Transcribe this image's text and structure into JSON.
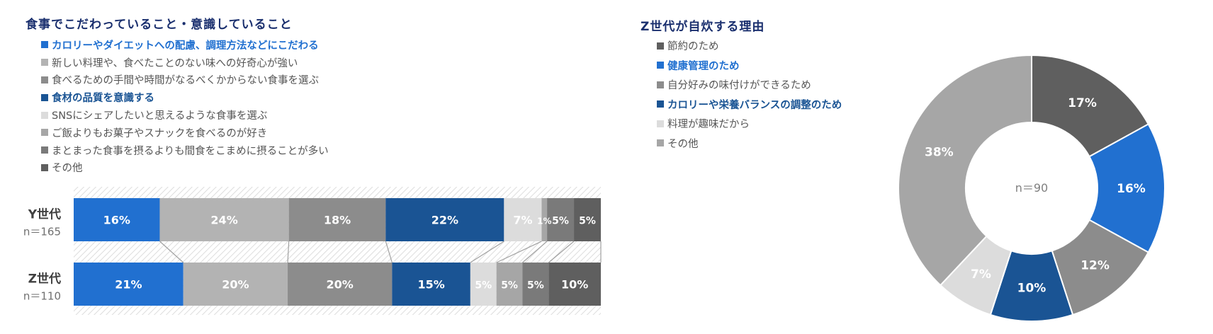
{
  "left_chart": {
    "title": "食事でこだわっていること・意識していること",
    "legend": [
      {
        "label": "カロリーやダイエットへの配慮、調理方法などにこだわる",
        "color": "#2170d0",
        "bold": true
      },
      {
        "label": "新しい料理や、食べたことのない味への好奇心が強い",
        "color": "#b3b3b3",
        "bold": false
      },
      {
        "label": "食べるための手間や時間がなるべくかからない食事を選ぶ",
        "color": "#8c8c8c",
        "bold": false
      },
      {
        "label": "食材の品質を意識する",
        "color": "#1a5494",
        "bold": true
      },
      {
        "label": "SNSにシェアしたいと思えるような食事を選ぶ",
        "color": "#dcdcdc",
        "bold": false
      },
      {
        "label": "ご飯よりもお菓子やスナックを食べるのが好き",
        "color": "#a6a6a6",
        "bold": false
      },
      {
        "label": "まとまった食事を摂るよりも間食をこまめに摂ることが多い",
        "color": "#7a7a7a",
        "bold": false
      },
      {
        "label": "その他",
        "color": "#5f5f5f",
        "bold": false
      }
    ]
  },
  "right_chart": {
    "title": "Z世代が自炊する理由",
    "legend": [
      {
        "label": "節約のため",
        "color": "#5f5f5f",
        "bold": false
      },
      {
        "label": "健康管理のため",
        "color": "#2170d0",
        "bold": true
      },
      {
        "label": "自分好みの味付けができるため",
        "color": "#8c8c8c",
        "bold": false
      },
      {
        "label": "カロリーや栄養バランスの調整のため",
        "color": "#1a5494",
        "bold": true
      },
      {
        "label": "料理が趣味だから",
        "color": "#dcdcdc",
        "bold": false
      },
      {
        "label": "その他",
        "color": "#a6a6a6",
        "bold": false
      }
    ],
    "center_label": "n＝90"
  },
  "chart_data": [
    {
      "type": "bar",
      "stacked": true,
      "orientation": "horizontal",
      "percent": true,
      "title": "食事でこだわっていること・意識していること",
      "categories": [
        "Y世代",
        "Z世代"
      ],
      "category_notes": [
        "n＝165",
        "n＝110"
      ],
      "series": [
        {
          "name": "カロリーやダイエットへの配慮、調理方法などにこだわる",
          "values": [
            16,
            21
          ],
          "color": "#2170d0"
        },
        {
          "name": "新しい料理や、食べたことのない味への好奇心が強い",
          "values": [
            24,
            20
          ],
          "color": "#b3b3b3"
        },
        {
          "name": "食べるための手間や時間がなるべくかからない食事を選ぶ",
          "values": [
            18,
            20
          ],
          "color": "#8c8c8c"
        },
        {
          "name": "食材の品質を意識する",
          "values": [
            22,
            15
          ],
          "color": "#1a5494"
        },
        {
          "name": "SNSにシェアしたいと思えるような食事を選ぶ",
          "values": [
            7,
            5
          ],
          "color": "#dcdcdc"
        },
        {
          "name": "ご飯よりもお菓子やスナックを食べるのが好き",
          "values": [
            1,
            5
          ],
          "color": "#a6a6a6"
        },
        {
          "name": "まとまった食事を摂るよりも間食をこまめに摂ることが多い",
          "values": [
            5,
            5
          ],
          "color": "#7a7a7a"
        },
        {
          "name": "その他",
          "values": [
            5,
            10
          ],
          "color": "#5f5f5f"
        }
      ],
      "legend_position": "top",
      "series_lines": true
    },
    {
      "type": "pie",
      "donut": true,
      "title": "Z世代が自炊する理由",
      "center_label": "n＝90",
      "labels": [
        "節約のため",
        "健康管理のため",
        "自分好みの味付けができるため",
        "カロリーや栄養バランスの調整のため",
        "料理が趣味だから",
        "その他"
      ],
      "values": [
        17,
        16,
        12,
        10,
        7,
        38
      ],
      "colors": [
        "#5f5f5f",
        "#2170d0",
        "#8c8c8c",
        "#1a5494",
        "#dcdcdc",
        "#a6a6a6"
      ],
      "legend_position": "left"
    }
  ]
}
